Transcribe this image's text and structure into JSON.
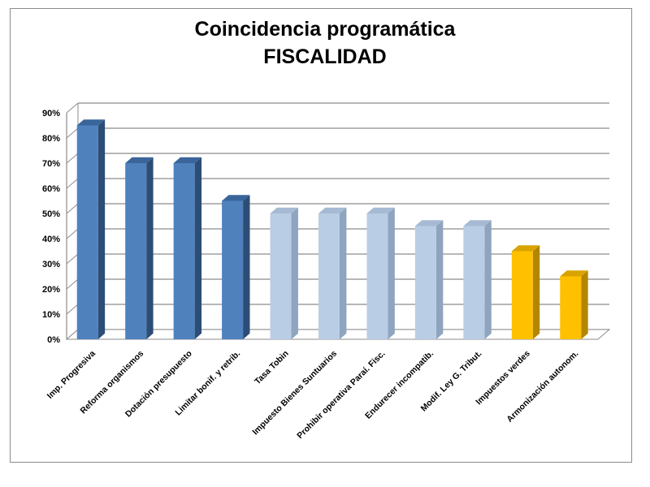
{
  "chart_data": {
    "type": "bar",
    "title": "Coincidencia programática",
    "subtitle": "FISCALIDAD",
    "xlabel": "",
    "ylabel": "",
    "ylim": [
      0,
      90
    ],
    "y_ticks": [
      "0%",
      "10%",
      "20%",
      "30%",
      "40%",
      "50%",
      "60%",
      "70%",
      "80%",
      "90%"
    ],
    "grid": true,
    "categories": [
      "Imp. Progresiva",
      "Reforma organismos",
      "Dotación presupuesto",
      "Limitar bonif. y retrib.",
      "Tasa Tobin",
      "Impuesto Bienes Suntuarios",
      "Prohibir operativa Paraí. Fisc.",
      "Endurecer incompatib.",
      "Modif. Ley G. Tribut.",
      "Impuestos verdes",
      "Armonización autonom."
    ],
    "values": [
      85,
      70,
      70,
      55,
      50,
      50,
      50,
      45,
      45,
      35,
      25
    ],
    "bar_colors": [
      "#4f81bd",
      "#4f81bd",
      "#4f81bd",
      "#4f81bd",
      "#b9cde5",
      "#b9cde5",
      "#b9cde5",
      "#b9cde5",
      "#b9cde5",
      "#ffc000",
      "#ffc000"
    ],
    "bar_side_colors": [
      "#2c4d75",
      "#2c4d75",
      "#2c4d75",
      "#2c4d75",
      "#8ea4bf",
      "#8ea4bf",
      "#8ea4bf",
      "#8ea4bf",
      "#8ea4bf",
      "#b38600",
      "#b38600"
    ],
    "bar_top_colors": [
      "#3a659a",
      "#3a659a",
      "#3a659a",
      "#3a659a",
      "#a6bad3",
      "#a6bad3",
      "#a6bad3",
      "#a6bad3",
      "#a6bad3",
      "#d9a300",
      "#d9a300"
    ]
  }
}
